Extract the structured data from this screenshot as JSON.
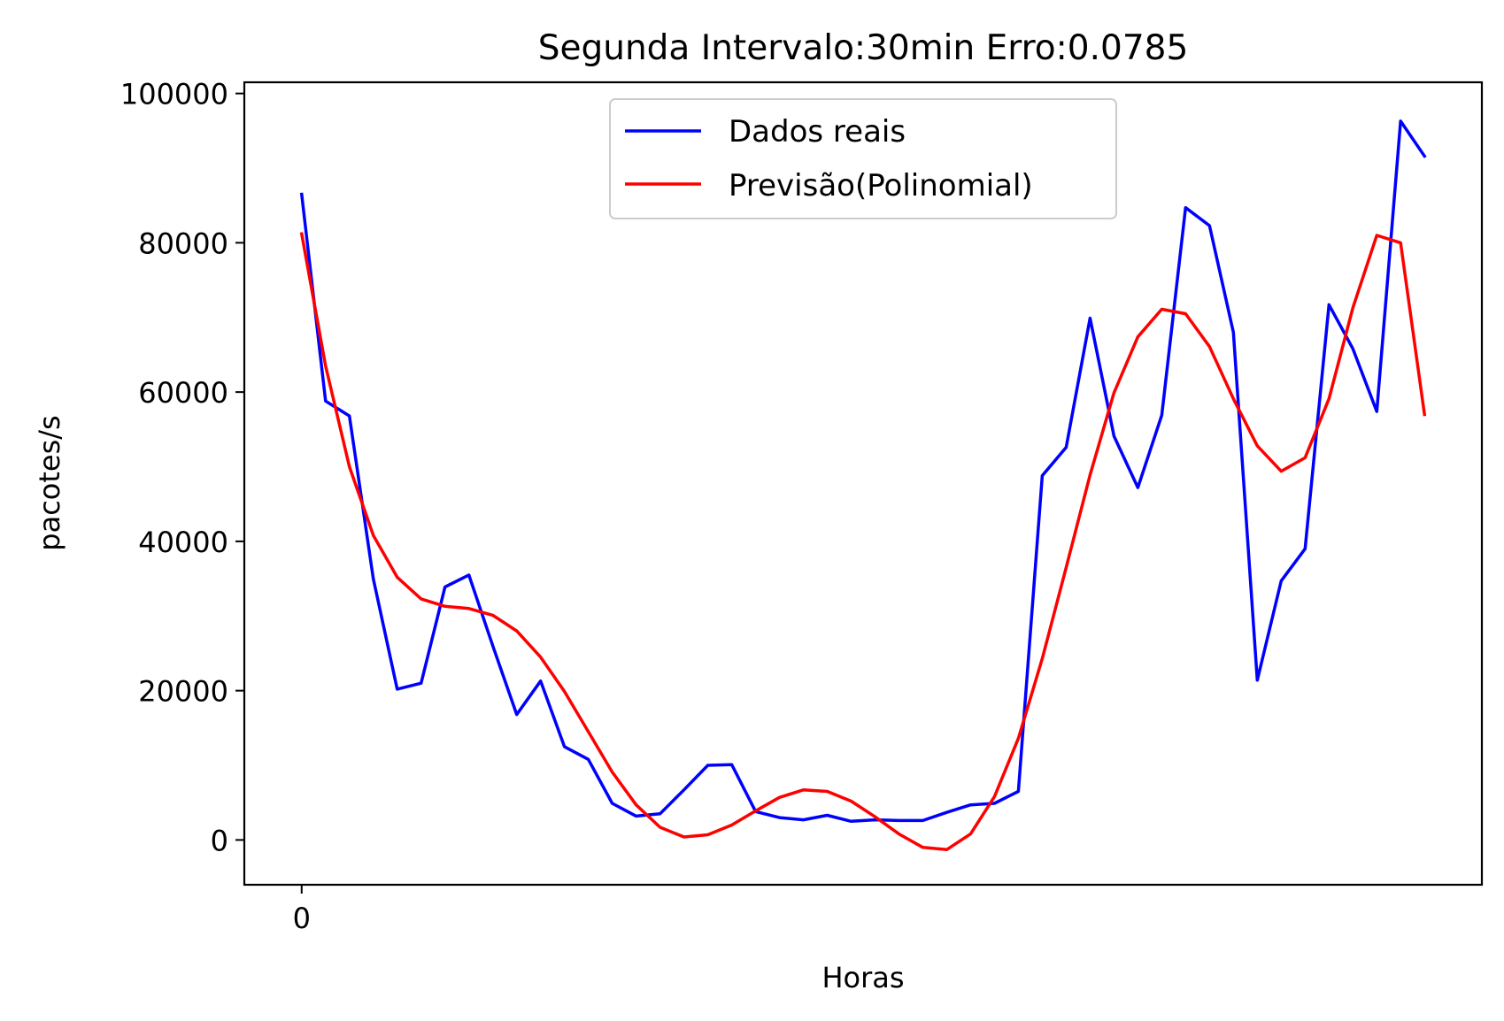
{
  "chart_data": {
    "type": "line",
    "title": "Segunda Intervalo:30min Erro:0.0785",
    "xlabel": "Horas",
    "ylabel": "pacotes/s",
    "x_ticks": [
      0
    ],
    "x_tick_labels": [
      "0"
    ],
    "xlim": [
      -2.4,
      49.4
    ],
    "ylim": [
      -6000,
      101500
    ],
    "y_ticks": [
      0,
      20000,
      40000,
      60000,
      80000,
      100000
    ],
    "y_tick_labels": [
      "0",
      "20000",
      "40000",
      "60000",
      "80000",
      "100000"
    ],
    "grid": false,
    "legend_position": "upper center",
    "x": [
      0,
      1,
      2,
      3,
      4,
      5,
      6,
      7,
      8,
      9,
      10,
      11,
      12,
      13,
      14,
      15,
      16,
      17,
      18,
      19,
      20,
      21,
      22,
      23,
      24,
      25,
      26,
      27,
      28,
      29,
      30,
      31,
      32,
      33,
      34,
      35,
      36,
      37,
      38,
      39,
      40,
      41,
      42,
      43,
      44,
      45,
      46,
      47
    ],
    "series": [
      {
        "name": "Dados reais",
        "color": "#0000ff",
        "values": [
          86500,
          58800,
          56800,
          35000,
          20200,
          21000,
          33900,
          35500,
          26000,
          16800,
          21300,
          12500,
          10800,
          4900,
          3200,
          3500,
          6700,
          10000,
          10100,
          3800,
          3000,
          2700,
          3300,
          2500,
          2700,
          2600,
          2600,
          3700,
          4700,
          4900,
          6500,
          48800,
          52600,
          69900,
          54100,
          47200,
          56900,
          84700,
          82300,
          68000,
          21400,
          34700,
          39000,
          71700,
          65800,
          57400,
          96300,
          91600
        ]
      },
      {
        "name": "Previsão(Polinomial)",
        "color": "#ff0000",
        "values": [
          81200,
          63500,
          50000,
          40800,
          35200,
          32300,
          31300,
          31000,
          30100,
          28000,
          24500,
          19900,
          14500,
          9100,
          4700,
          1700,
          400,
          700,
          2000,
          3900,
          5700,
          6700,
          6500,
          5200,
          3100,
          800,
          -1000,
          -1300,
          800,
          5800,
          13600,
          24300,
          36500,
          48900,
          59900,
          67400,
          71100,
          70500,
          66100,
          59100,
          52800,
          49400,
          51200,
          59100,
          71300,
          81000,
          80000,
          57000
        ]
      }
    ]
  }
}
